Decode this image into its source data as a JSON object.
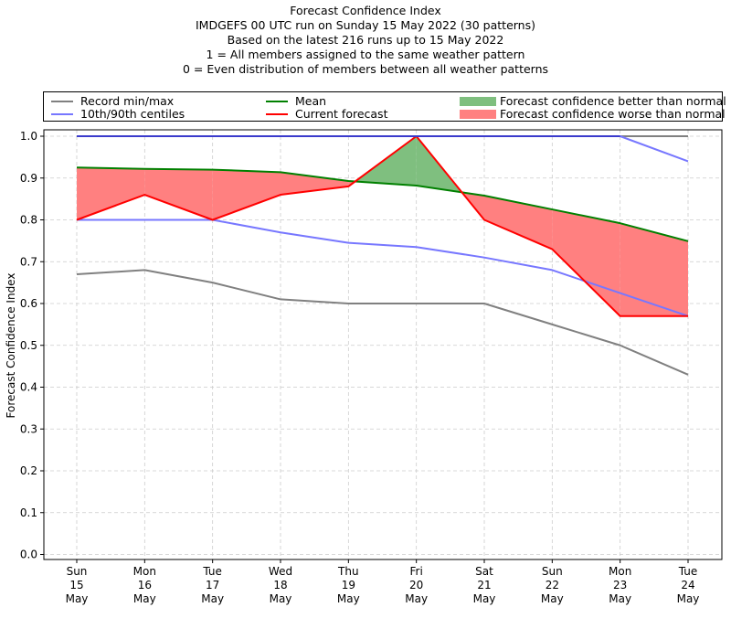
{
  "chart_data": {
    "type": "line",
    "title": "Forecast Confidence Index",
    "subtitles": [
      "IMDGEFS 00 UTC run on Sunday 15 May 2022 (30 patterns)",
      "Based on the latest 216 runs up to 15 May 2022",
      "1 = All members assigned to the same weather pattern",
      "0 = Even distribution of members between all weather patterns"
    ],
    "xlabel": "",
    "ylabel": "Forecast Confidence Index",
    "ylim": [
      0.0,
      1.0
    ],
    "yticks": [
      "0.0",
      "0.1",
      "0.2",
      "0.3",
      "0.4",
      "0.5",
      "0.6",
      "0.7",
      "0.8",
      "0.9",
      "1.0"
    ],
    "grid": true,
    "categories": [
      [
        "Sun",
        "15",
        "May"
      ],
      [
        "Mon",
        "16",
        "May"
      ],
      [
        "Tue",
        "17",
        "May"
      ],
      [
        "Wed",
        "18",
        "May"
      ],
      [
        "Thu",
        "19",
        "May"
      ],
      [
        "Fri",
        "20",
        "May"
      ],
      [
        "Sat",
        "21",
        "May"
      ],
      [
        "Sun",
        "22",
        "May"
      ],
      [
        "Mon",
        "23",
        "May"
      ],
      [
        "Tue",
        "24",
        "May"
      ]
    ],
    "series": [
      {
        "name": "Record min",
        "legend": "Record min/max",
        "color": "#808080",
        "values": [
          0.67,
          0.68,
          0.65,
          0.61,
          0.6,
          0.6,
          0.6,
          0.55,
          0.5,
          0.43
        ]
      },
      {
        "name": "Record max",
        "legend": "Record min/max",
        "color": "#808080",
        "values": [
          1.0,
          1.0,
          1.0,
          1.0,
          1.0,
          1.0,
          1.0,
          1.0,
          1.0,
          1.0
        ]
      },
      {
        "name": "10th centile",
        "legend": "10th/90th centiles",
        "color": "#7777ff",
        "values": [
          0.8,
          0.8,
          0.8,
          0.77,
          0.745,
          0.735,
          0.71,
          0.68,
          0.625,
          0.57
        ]
      },
      {
        "name": "90th centile",
        "legend": "10th/90th centiles",
        "color": "#7777ff",
        "values": [
          1.0,
          1.0,
          1.0,
          1.0,
          1.0,
          1.0,
          1.0,
          1.0,
          1.0,
          0.94
        ]
      },
      {
        "name": "Mean",
        "legend": "Mean",
        "color": "#008000",
        "values": [
          0.925,
          0.922,
          0.92,
          0.914,
          0.893,
          0.882,
          0.858,
          0.825,
          0.792,
          0.749
        ]
      },
      {
        "name": "Current forecast",
        "legend": "Current forecast",
        "color": "#ff0000",
        "values": [
          0.8,
          0.86,
          0.8,
          0.86,
          0.88,
          1.0,
          0.8,
          0.73,
          0.57,
          0.57
        ]
      }
    ],
    "fills": [
      {
        "name": "Forecast confidence better than normal",
        "color": "#7fbf7f",
        "condition": "current > mean"
      },
      {
        "name": "Forecast confidence worse than normal",
        "color": "#ff8080",
        "condition": "current < mean"
      }
    ],
    "legend": {
      "placement": "top",
      "entries": [
        {
          "label": "Record min/max",
          "color": "#808080",
          "kind": "line"
        },
        {
          "label": "10th/90th centiles",
          "color": "#7777ff",
          "kind": "line"
        },
        {
          "label": "Mean",
          "color": "#008000",
          "kind": "line"
        },
        {
          "label": "Current forecast",
          "color": "#ff0000",
          "kind": "line"
        },
        {
          "label": "Forecast confidence better than normal",
          "color": "#7fbf7f",
          "kind": "patch"
        },
        {
          "label": "Forecast confidence worse than normal",
          "color": "#ff8080",
          "kind": "patch"
        }
      ]
    }
  }
}
